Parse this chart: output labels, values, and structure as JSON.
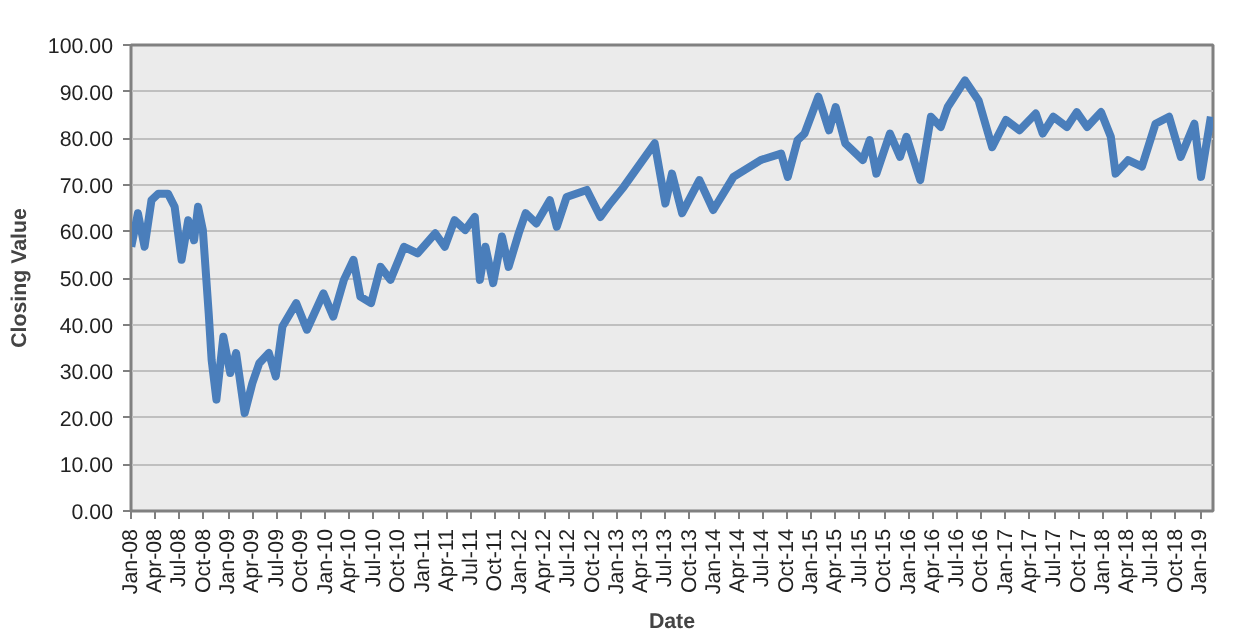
{
  "chart_data": {
    "type": "line",
    "xlabel": "Date",
    "ylabel": "Closing Value",
    "grid": "y",
    "marker": "none",
    "line_style": "solid",
    "xlim": [
      "2008-01-01",
      "2019-02-18"
    ],
    "ylim": [
      0,
      100
    ],
    "yticks": [
      {
        "value": 0,
        "label": "0.00"
      },
      {
        "value": 10,
        "label": "10.00"
      },
      {
        "value": 20,
        "label": "20.00"
      },
      {
        "value": 30,
        "label": "30.00"
      },
      {
        "value": 40,
        "label": "40.00"
      },
      {
        "value": 50,
        "label": "50.00"
      },
      {
        "value": 60,
        "label": "60.00"
      },
      {
        "value": 70,
        "label": "70.00"
      },
      {
        "value": 80,
        "label": "80.00"
      },
      {
        "value": 90,
        "label": "90.00"
      },
      {
        "value": 100,
        "label": "100.00"
      }
    ],
    "xticks": [
      {
        "value": "2008-01",
        "label": "Jan-08"
      },
      {
        "value": "2008-04",
        "label": "Apr-08"
      },
      {
        "value": "2008-07",
        "label": "Jul-08"
      },
      {
        "value": "2008-10",
        "label": "Oct-08"
      },
      {
        "value": "2009-01",
        "label": "Jan-09"
      },
      {
        "value": "2009-04",
        "label": "Apr-09"
      },
      {
        "value": "2009-07",
        "label": "Jul-09"
      },
      {
        "value": "2009-10",
        "label": "Oct-09"
      },
      {
        "value": "2010-01",
        "label": "Jan-10"
      },
      {
        "value": "2010-04",
        "label": "Apr-10"
      },
      {
        "value": "2010-07",
        "label": "Jul-10"
      },
      {
        "value": "2010-10",
        "label": "Oct-10"
      },
      {
        "value": "2011-01",
        "label": "Jan-11"
      },
      {
        "value": "2011-04",
        "label": "Apr-11"
      },
      {
        "value": "2011-07",
        "label": "Jul-11"
      },
      {
        "value": "2011-10",
        "label": "Oct-11"
      },
      {
        "value": "2012-01",
        "label": "Jan-12"
      },
      {
        "value": "2012-04",
        "label": "Apr-12"
      },
      {
        "value": "2012-07",
        "label": "Jul-12"
      },
      {
        "value": "2012-10",
        "label": "Oct-12"
      },
      {
        "value": "2013-01",
        "label": "Jan-13"
      },
      {
        "value": "2013-04",
        "label": "Apr-13"
      },
      {
        "value": "2013-07",
        "label": "Jul-13"
      },
      {
        "value": "2013-10",
        "label": "Oct-13"
      },
      {
        "value": "2014-01",
        "label": "Jan-14"
      },
      {
        "value": "2014-04",
        "label": "Apr-14"
      },
      {
        "value": "2014-07",
        "label": "Jul-14"
      },
      {
        "value": "2014-10",
        "label": "Oct-14"
      },
      {
        "value": "2015-01",
        "label": "Jan-15"
      },
      {
        "value": "2015-04",
        "label": "Apr-15"
      },
      {
        "value": "2015-07",
        "label": "Jul-15"
      },
      {
        "value": "2015-10",
        "label": "Oct-15"
      },
      {
        "value": "2016-01",
        "label": "Jan-16"
      },
      {
        "value": "2016-04",
        "label": "Apr-16"
      },
      {
        "value": "2016-07",
        "label": "Jul-16"
      },
      {
        "value": "2016-10",
        "label": "Oct-16"
      },
      {
        "value": "2017-01",
        "label": "Jan-17"
      },
      {
        "value": "2017-04",
        "label": "Apr-17"
      },
      {
        "value": "2017-07",
        "label": "Jul-17"
      },
      {
        "value": "2017-10",
        "label": "Oct-17"
      },
      {
        "value": "2018-01",
        "label": "Jan-18"
      },
      {
        "value": "2018-04",
        "label": "Apr-18"
      },
      {
        "value": "2018-07",
        "label": "Jul-18"
      },
      {
        "value": "2018-10",
        "label": "Oct-18"
      },
      {
        "value": "2019-01",
        "label": "Jan-19"
      }
    ],
    "series": [
      {
        "color": "#4a7ebb",
        "x": [
          "2008-01-02",
          "2008-01-27",
          "2008-02-21",
          "2008-03-18",
          "2008-04-13",
          "2008-05-19",
          "2008-06-13",
          "2008-07-09",
          "2008-08-03",
          "2008-08-25",
          "2008-09-09",
          "2008-09-27",
          "2008-10-19",
          "2008-10-30",
          "2008-11-17",
          "2008-12-13",
          "2009-01-08",
          "2009-01-30",
          "2009-03-03",
          "2009-04-01",
          "2009-04-27",
          "2009-06-02",
          "2009-06-28",
          "2009-07-23",
          "2009-09-13",
          "2009-10-23",
          "2009-12-24",
          "2010-01-30",
          "2010-03-11",
          "2010-04-16",
          "2010-05-12",
          "2010-06-21",
          "2010-07-27",
          "2010-09-02",
          "2010-10-23",
          "2010-12-13",
          "2011-02-17",
          "2011-03-25",
          "2011-05-01",
          "2011-06-10",
          "2011-07-16",
          "2011-08-04",
          "2011-08-25",
          "2011-09-23",
          "2011-10-26",
          "2011-11-20",
          "2011-12-28",
          "2012-01-23",
          "2012-03-03",
          "2012-04-23",
          "2012-05-19",
          "2012-06-25",
          "2012-09-09",
          "2012-10-30",
          "2012-12-06",
          "2013-01-26",
          "2013-05-22",
          "2013-07-01",
          "2013-07-26",
          "2013-09-02",
          "2013-11-06",
          "2013-12-28",
          "2014-03-14",
          "2014-06-24",
          "2014-09-09",
          "2014-10-04",
          "2014-11-10",
          "2014-12-06",
          "2015-01-27",
          "2015-03-08",
          "2015-04-02",
          "2015-05-08",
          "2015-07-13",
          "2015-08-08",
          "2015-09-02",
          "2015-10-23",
          "2015-11-30",
          "2015-12-24",
          "2016-02-14",
          "2016-03-25",
          "2016-05-01",
          "2016-05-27",
          "2016-07-31",
          "2016-09-20",
          "2016-11-10",
          "2017-01-01",
          "2017-02-21",
          "2017-04-23",
          "2017-05-19",
          "2017-06-28",
          "2017-08-18",
          "2017-09-24",
          "2017-11-02",
          "2017-12-24",
          "2018-01-30",
          "2018-02-17",
          "2018-04-05",
          "2018-05-27",
          "2018-07-17",
          "2018-09-06",
          "2018-10-20",
          "2018-12-10",
          "2019-01-04",
          "2019-02-10"
        ],
        "values": [
          56.7,
          63.9,
          56.7,
          66.7,
          68.1,
          68.1,
          65.3,
          53.9,
          62.4,
          58.1,
          65.3,
          60.3,
          42.4,
          32.4,
          23.9,
          37.4,
          29.6,
          33.9,
          21.0,
          27.4,
          31.7,
          33.9,
          28.9,
          39.6,
          44.6,
          38.9,
          46.7,
          41.7,
          49.6,
          53.9,
          46.0,
          44.6,
          52.4,
          49.6,
          56.7,
          55.3,
          59.6,
          56.7,
          62.4,
          60.3,
          63.1,
          49.6,
          56.7,
          48.9,
          58.9,
          52.4,
          59.6,
          63.9,
          61.7,
          66.7,
          61.0,
          67.4,
          68.9,
          63.1,
          66.0,
          69.6,
          78.9,
          66.0,
          72.4,
          63.9,
          71.0,
          64.6,
          71.7,
          75.3,
          76.7,
          71.7,
          79.6,
          81.0,
          88.9,
          81.7,
          86.7,
          78.9,
          75.3,
          79.6,
          72.4,
          81.0,
          76.0,
          80.3,
          71.0,
          84.6,
          82.4,
          86.7,
          92.4,
          88.1,
          78.1,
          83.9,
          81.7,
          85.3,
          81.0,
          84.6,
          82.4,
          85.6,
          82.4,
          85.6,
          80.3,
          72.4,
          75.3,
          73.9,
          83.1,
          84.6,
          76.0,
          83.1,
          71.7,
          84.6
        ]
      }
    ]
  }
}
